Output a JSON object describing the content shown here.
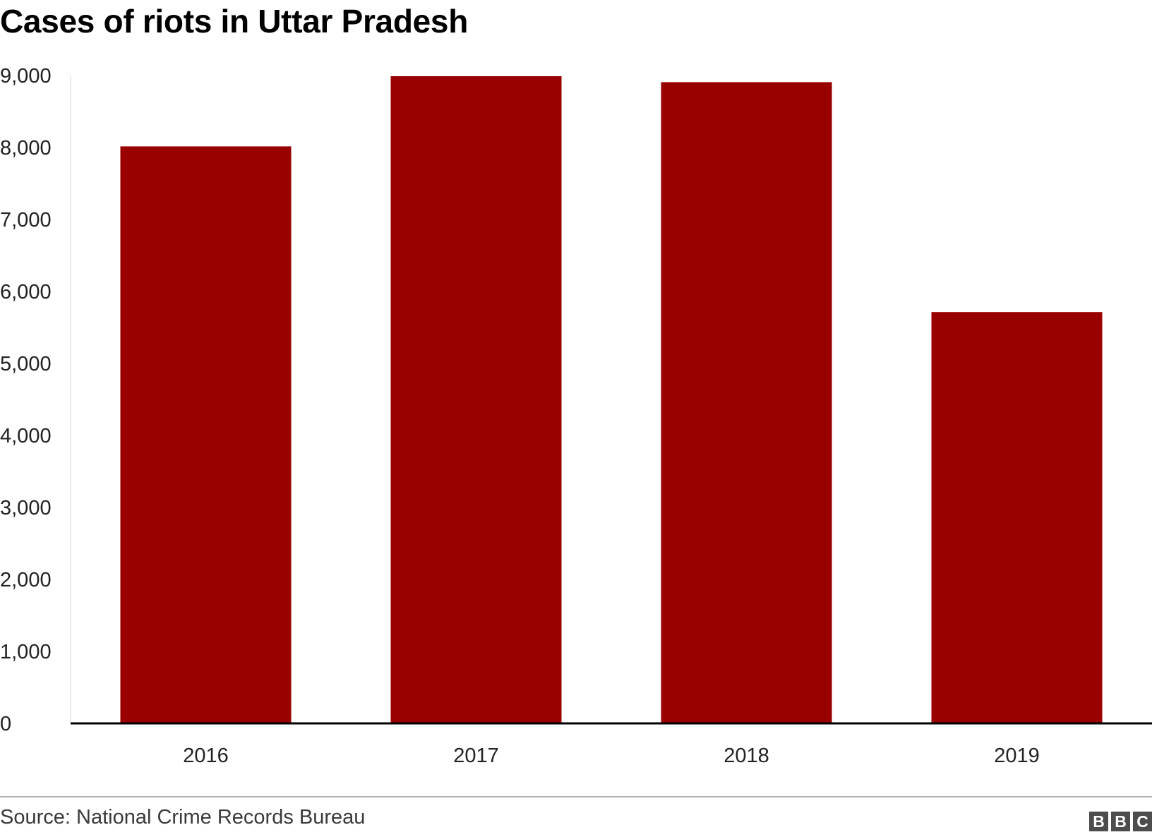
{
  "chart_data": {
    "type": "bar",
    "title": "Cases of riots in Uttar Pradesh",
    "categories": [
      "2016",
      "2017",
      "2018",
      "2019"
    ],
    "values": [
      8016,
      8990,
      8908,
      5714
    ],
    "ylim": [
      0,
      9000
    ],
    "yticks": [
      0,
      1000,
      2000,
      3000,
      4000,
      5000,
      6000,
      7000,
      8000,
      9000
    ],
    "ytick_labels": [
      "0",
      "1,000",
      "2,000",
      "3,000",
      "4,000",
      "5,000",
      "6,000",
      "7,000",
      "8,000",
      "9,000"
    ],
    "xlabel": "",
    "ylabel": "",
    "grid": false,
    "bar_color": "#990000"
  },
  "footer": {
    "source": "Source: National Crime Records Bureau",
    "logo_letters": [
      "B",
      "B",
      "C"
    ]
  }
}
